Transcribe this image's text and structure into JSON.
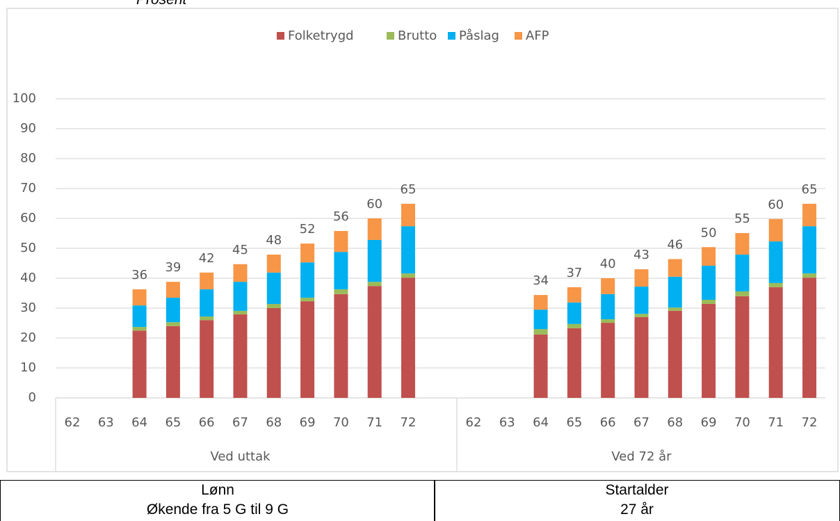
{
  "chart_data": {
    "type": "stacked_bar",
    "y_label": "Prosent",
    "categories": [
      "62",
      "63",
      "64",
      "65",
      "66",
      "67",
      "68",
      "69",
      "70",
      "71",
      "72",
      "62",
      "63",
      "64",
      "65",
      "66",
      "67",
      "68",
      "69",
      "70",
      "71",
      "72"
    ],
    "category_groups": [
      "Ved uttak",
      "Ved 72 år"
    ],
    "series": [
      {
        "name": "Folketrygd",
        "color": "#c0504d",
        "values": [
          null,
          null,
          22.5,
          24,
          26,
          27.9,
          30,
          32.3,
          34.7,
          37.4,
          40.2,
          null,
          null,
          21.2,
          23.3,
          25.1,
          27,
          29.1,
          31.4,
          34,
          37,
          40.2
        ]
      },
      {
        "name": "Brutto",
        "color": "#9bbb59",
        "values": [
          null,
          null,
          1.2,
          1.3,
          1.2,
          1.2,
          1.4,
          1.2,
          1.6,
          1.4,
          1.4,
          null,
          null,
          1.8,
          1.4,
          1.2,
          1.1,
          1.1,
          1.4,
          1.6,
          1.4,
          1.4
        ]
      },
      {
        "name": "Påslag",
        "color": "#00b0f0",
        "values": [
          null,
          null,
          7.2,
          8.2,
          9.1,
          9.7,
          10.5,
          11.8,
          12.5,
          14,
          15.8,
          null,
          null,
          6.5,
          7.2,
          8.4,
          9.1,
          10.3,
          11.4,
          12.3,
          13.9,
          15.8
        ]
      },
      {
        "name": "AFP",
        "color": "#f79646",
        "values": [
          null,
          null,
          5.4,
          5.3,
          5.6,
          5.9,
          6,
          6.3,
          7,
          7.2,
          7.5,
          null,
          null,
          4.9,
          5.1,
          5.3,
          5.8,
          5.9,
          6.2,
          7.2,
          7.5,
          7.5
        ]
      }
    ],
    "total_labels": [
      null,
      null,
      36,
      39,
      42,
      45,
      48,
      52,
      56,
      60,
      65,
      null,
      null,
      34,
      37,
      40,
      43,
      46,
      50,
      55,
      60,
      65
    ],
    "ylim": [
      0,
      100
    ],
    "yticks": [
      0,
      10,
      20,
      30,
      40,
      50,
      60,
      70,
      80,
      90,
      100
    ],
    "grid": true,
    "legend": "top"
  },
  "table": {
    "rows": [
      [
        [
          "Lønn",
          "Økende fra 5 G til 9 G"
        ],
        [
          "Startalder",
          "27 år"
        ]
      ]
    ]
  }
}
